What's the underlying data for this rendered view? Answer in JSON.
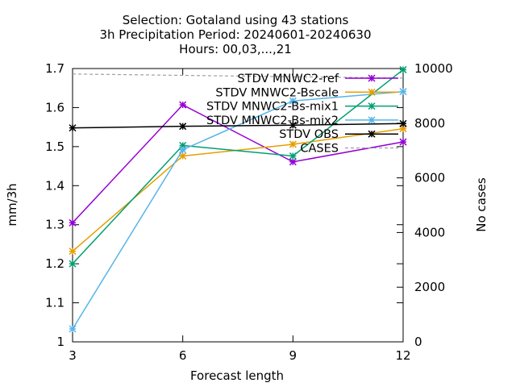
{
  "chart_data": {
    "type": "line",
    "title_lines": [
      "Selection: Gotaland using     43 stations",
      "3h Precipitation   Period: 20240601-20240630",
      "Hours: 00,03,...,21"
    ],
    "xlabel": "Forecast length",
    "ylabel": "mm/3h",
    "y2label": "No cases",
    "x": [
      3,
      6,
      9,
      12
    ],
    "xlim": [
      3,
      12
    ],
    "ylim": [
      1,
      1.7
    ],
    "y2lim": [
      0,
      10000
    ],
    "xticks": [
      3,
      6,
      9,
      12
    ],
    "yticks": [
      1,
      1.1,
      1.2,
      1.3,
      1.4,
      1.5,
      1.6,
      1.7
    ],
    "ytick_labels": [
      "1",
      "1.1",
      "1.2",
      "1.3",
      "1.4",
      "1.5",
      "1.6",
      "1.7"
    ],
    "y2ticks": [
      0,
      2000,
      4000,
      6000,
      8000,
      10000
    ],
    "grid": false,
    "legend_position": "top-right",
    "series": [
      {
        "name": "STDV MNWC2-ref",
        "color": "#9400d3",
        "axis": "y1",
        "style": "solid",
        "marker": "star",
        "values": [
          1.305,
          1.607,
          1.461,
          1.512
        ]
      },
      {
        "name": "STDV MNWC2-Bscale",
        "color": "#e69f00",
        "axis": "y1",
        "style": "solid",
        "marker": "star",
        "values": [
          1.232,
          1.476,
          1.506,
          1.546
        ]
      },
      {
        "name": "STDV MNWC2-Bs-mix1",
        "color": "#009e73",
        "axis": "y1",
        "style": "solid",
        "marker": "star",
        "values": [
          1.2,
          1.503,
          1.476,
          1.697
        ]
      },
      {
        "name": "STDV MNWC2-Bs-mix2",
        "color": "#56b4e9",
        "axis": "y1",
        "style": "solid",
        "marker": "star",
        "values": [
          1.033,
          1.492,
          1.617,
          1.641
        ]
      },
      {
        "name": "STDV OBS",
        "color": "#000000",
        "axis": "y1",
        "style": "solid",
        "marker": "star",
        "values": [
          1.548,
          1.552,
          1.555,
          1.559
        ]
      },
      {
        "name": "CASES",
        "color": "#a0a0a0",
        "axis": "y2",
        "style": "dashed",
        "marker": "none",
        "values": [
          9800,
          9750,
          9700,
          9650
        ]
      }
    ]
  }
}
